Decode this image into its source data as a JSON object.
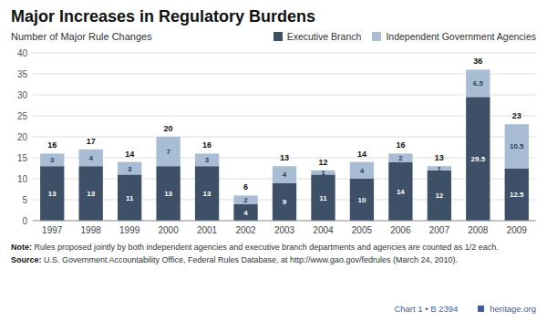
{
  "chart_data": {
    "type": "bar",
    "stacked": true,
    "title": "Major Increases in Regulatory Burdens",
    "ylabel": "Number of Major Rule Changes",
    "categories": [
      "1997",
      "1998",
      "1999",
      "2000",
      "2001",
      "2002",
      "2003",
      "2004",
      "2005",
      "2006",
      "2007",
      "2008",
      "2009"
    ],
    "series": [
      {
        "name": "Executive Branch",
        "color": "#3d5068",
        "values": [
          13,
          13,
          11,
          13,
          13,
          4,
          9,
          11,
          10,
          14,
          12,
          29.5,
          12.5
        ]
      },
      {
        "name": "Independent Government Agencies",
        "color": "#a8bdd4",
        "values": [
          3,
          4,
          3,
          7,
          3,
          2,
          4,
          1,
          4,
          2,
          1,
          6.5,
          10.5
        ]
      }
    ],
    "totals": [
      16,
      17,
      14,
      20,
      16,
      6,
      13,
      12,
      14,
      16,
      13,
      36,
      23
    ],
    "data_labels": true,
    "ylim": [
      0,
      40
    ],
    "yticks": [
      0,
      5,
      10,
      15,
      20,
      25,
      30,
      35,
      40
    ],
    "grid": true,
    "legend": "top",
    "notes": [
      {
        "label": "Note:",
        "text": "Rules proposed jointly by both independent agencies and executive branch departments and agencies are counted as 1/2 each."
      },
      {
        "label": "Source:",
        "text": "U.S. Government Accountability Office, Federal Rules Database, at http://www.gao.gov/fedrules (March 24, 2010)."
      }
    ],
    "chart_id": "Chart 1 • B 2394",
    "website": "heritage.org"
  }
}
